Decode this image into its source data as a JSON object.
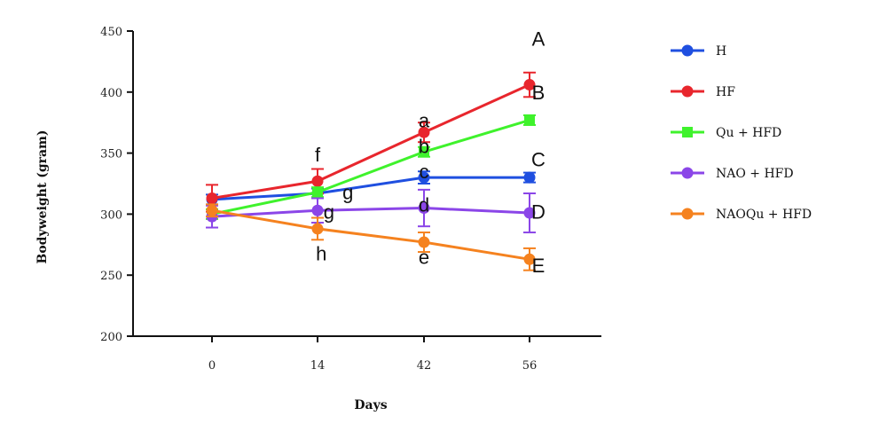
{
  "chart_data": {
    "type": "line",
    "title": "",
    "xlabel": "Days",
    "ylabel": "Bodyweight (gram)",
    "categories": [
      "0",
      "14",
      "42",
      "56"
    ],
    "ylim": [
      200,
      450
    ],
    "yticks": [
      200,
      250,
      300,
      350,
      400,
      450
    ],
    "legend_position": "right",
    "series": [
      {
        "name": "H",
        "color": "#1f4fe0",
        "marker": "circle",
        "values": [
          312,
          317,
          330,
          330
        ],
        "errors": [
          4,
          4,
          5,
          4
        ]
      },
      {
        "name": "HF",
        "color": "#e8262d",
        "marker": "circle",
        "values": [
          313,
          327,
          367,
          406
        ],
        "errors": [
          11,
          10,
          8,
          10
        ]
      },
      {
        "name": "Qu + HFD",
        "color": "#3ff22c",
        "marker": "square",
        "values": [
          300,
          318,
          351,
          377
        ],
        "errors": [
          4,
          4,
          4,
          4
        ]
      },
      {
        "name": "NAO + HFD",
        "color": "#8b46e8",
        "marker": "circle",
        "values": [
          298,
          303,
          305,
          301
        ],
        "errors": [
          9,
          10,
          15,
          16
        ]
      },
      {
        "name": "NAOQu + HFD",
        "color": "#f5821f",
        "marker": "circle",
        "values": [
          303,
          288,
          277,
          263
        ],
        "errors": [
          5,
          9,
          8,
          9
        ]
      }
    ],
    "annotations": [
      {
        "text": "A",
        "x": "56",
        "y": 444
      },
      {
        "text": "B",
        "x": "56",
        "y": 400
      },
      {
        "text": "C",
        "x": "56",
        "y": 345
      },
      {
        "text": "D",
        "x": "56",
        "y": 302
      },
      {
        "text": "E",
        "x": "56",
        "y": 258
      },
      {
        "text": "a",
        "x": "42",
        "y": 377
      },
      {
        "text": "b",
        "x": "42",
        "y": 356
      },
      {
        "text": "c",
        "x": "42",
        "y": 335
      },
      {
        "text": "d",
        "x": "42",
        "y": 308
      },
      {
        "text": "e",
        "x": "42",
        "y": 265
      },
      {
        "text": "f",
        "x": "14",
        "y": 349
      },
      {
        "text": "g",
        "x": "22",
        "y": 318
      },
      {
        "text": "g",
        "x": "17",
        "y": 302
      },
      {
        "text": "h",
        "x": "15",
        "y": 268
      }
    ]
  }
}
